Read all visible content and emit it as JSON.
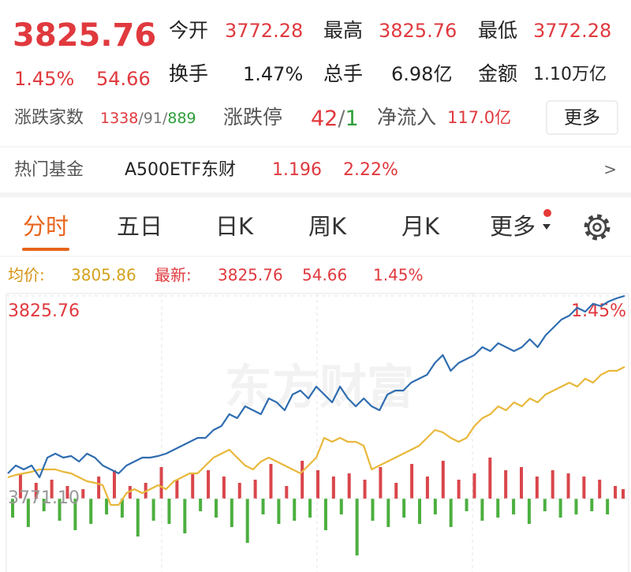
{
  "quote": {
    "price": "3825.76",
    "change_pct": "1.45%",
    "change": "54.66",
    "stats": [
      {
        "label": "今开",
        "value": "3772.28"
      },
      {
        "label": "最高",
        "value": "3825.76"
      },
      {
        "label": "最低",
        "value": "3772.28"
      },
      {
        "label": "换手",
        "value": "1.47%"
      },
      {
        "label": "总手",
        "value": "6.98亿"
      },
      {
        "label": "金额",
        "value": "1.10万亿"
      }
    ]
  },
  "breadth": {
    "label": "涨跌家数",
    "up": "1338",
    "flat": "91",
    "down": "889",
    "separator": "/"
  },
  "limit": {
    "label": "涨跌停",
    "up": "42",
    "down": "1"
  },
  "net_inflow": {
    "label": "净流入",
    "value": "117.0亿"
  },
  "more_button": "更多",
  "hot_fund": {
    "label": "热门基金",
    "name": "A500ETF东财",
    "price": "1.196",
    "change": "2.22%",
    "arrow": ">"
  },
  "tabs": [
    {
      "label": "分时",
      "active": true
    },
    {
      "label": "五日",
      "active": false
    },
    {
      "label": "日K",
      "active": false
    },
    {
      "label": "周K",
      "active": false
    },
    {
      "label": "月K",
      "active": false
    },
    {
      "label": "更多",
      "active": false
    }
  ],
  "legend": {
    "avg_label": "均价:",
    "avg": "3805.86",
    "last_label": "最新:",
    "last": "3825.76",
    "change": "54.66",
    "change_pct": "1.45%"
  },
  "watermark": "东方财富",
  "chart_data": {
    "type": "line",
    "ylim": [
      3751.32,
      3825.76
    ],
    "yticks": [
      {
        "value": 3771.1,
        "label": "3771.10"
      },
      3825.76
    ],
    "y2lim": [
      -0.52,
      1.45
    ],
    "y2ticks": [
      {
        "value": 1.45,
        "label": "1.45%"
      }
    ],
    "series": [
      {
        "color": "#2f6db0",
        "values": [
          3777.91,
          3780.03,
          3778.97,
          3780.03,
          3776.84,
          3782.16,
          3783.22,
          3782.16,
          3782.59,
          3781.1,
          3783.22,
          3782.16,
          3780.03,
          3778.97,
          3777.91,
          3780.03,
          3781.1,
          3782.16,
          3782.16,
          3782.59,
          3783.22,
          3784.29,
          3785.35,
          3786.41,
          3787.48,
          3787.48,
          3789.6,
          3790.67,
          3793.86,
          3792.8,
          3795.99,
          3794.92,
          3793.86,
          3798.11,
          3797.05,
          3794.92,
          3799.18,
          3800.24,
          3798.11,
          3801.3,
          3799.18,
          3797.05,
          3801.3,
          3798.11,
          3795.99,
          3798.11,
          3795.99,
          3794.92,
          3799.18,
          3800.24,
          3800.24,
          3802.37,
          3803.43,
          3804.49,
          3807.68,
          3809.81,
          3805.56,
          3807.68,
          3808.75,
          3809.81,
          3811.94,
          3810.87,
          3813.0,
          3811.94,
          3810.87,
          3811.94,
          3814.07,
          3811.94,
          3815.13,
          3817.26,
          3819.38,
          3820.45,
          3822.57,
          3821.51,
          3823.64,
          3823.0,
          3824.28,
          3825.13,
          3825.76
        ]
      },
      {
        "color": "#e8b83a",
        "values": [
          3776.84,
          3777.48,
          3777.91,
          3778.33,
          3778.97,
          3778.97,
          3778.97,
          3778.33,
          3777.91,
          3776.84,
          3775.78,
          3775.35,
          3774.72,
          3769.4,
          3769.4,
          3772.59,
          3773.65,
          3772.59,
          3773.65,
          3774.72,
          3773.65,
          3775.78,
          3776.84,
          3777.91,
          3777.91,
          3780.03,
          3782.16,
          3783.22,
          3784.29,
          3782.16,
          3780.03,
          3778.97,
          3781.1,
          3782.16,
          3781.1,
          3780.03,
          3778.97,
          3777.91,
          3780.03,
          3782.16,
          3787.48,
          3786.41,
          3787.48,
          3786.41,
          3786.41,
          3785.35,
          3778.97,
          3780.03,
          3781.1,
          3782.16,
          3783.22,
          3784.29,
          3785.35,
          3787.48,
          3789.6,
          3788.97,
          3787.48,
          3786.41,
          3787.48,
          3790.67,
          3792.8,
          3793.86,
          3795.99,
          3794.92,
          3797.05,
          3795.99,
          3798.11,
          3797.05,
          3799.18,
          3800.24,
          3801.3,
          3802.37,
          3801.3,
          3803.43,
          3802.37,
          3804.49,
          3805.56,
          3805.56,
          3806.62
        ]
      }
    ],
    "bars": {
      "up_color": "#d9464b",
      "down_color": "#4caf3f",
      "ylim": [
        -100,
        100
      ],
      "values": [
        -30,
        40,
        -45,
        25,
        -20,
        30,
        -35,
        20,
        -50,
        15,
        -40,
        35,
        -25,
        45,
        -30,
        20,
        -60,
        25,
        -35,
        50,
        -40,
        30,
        -55,
        40,
        -20,
        45,
        -30,
        35,
        -45,
        25,
        -70,
        30,
        -25,
        55,
        -40,
        20,
        -35,
        60,
        -30,
        45,
        -50,
        35,
        -25,
        40,
        -90,
        30,
        -35,
        50,
        -45,
        25,
        -30,
        55,
        -40,
        35,
        -25,
        60,
        -45,
        30,
        -20,
        40,
        -35,
        65,
        -30,
        45,
        -25,
        50,
        -40,
        35,
        -20,
        45,
        -30,
        40,
        -25,
        35,
        -20,
        30,
        -25,
        20,
        15
      ]
    }
  }
}
